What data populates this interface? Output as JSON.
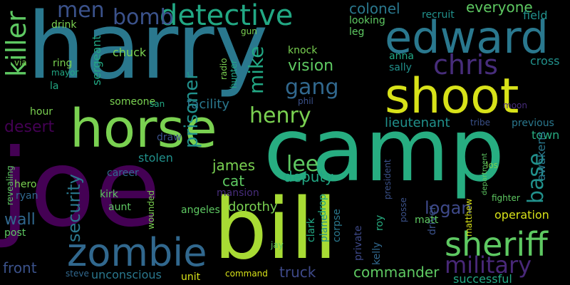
{
  "words": [
    {
      "text": "harry",
      "color": "#2a788e"
    },
    {
      "text": "camp",
      "color": "#27ad81"
    },
    {
      "text": "joe",
      "color": "#440154"
    },
    {
      "text": "bill",
      "color": "#a8db34"
    },
    {
      "text": "horse",
      "color": "#7ad151"
    },
    {
      "text": "shoot",
      "color": "#d8e219"
    },
    {
      "text": "edward",
      "color": "#2a788e"
    },
    {
      "text": "zombie",
      "color": "#31688e"
    },
    {
      "text": "sheriff",
      "color": "#5ec962"
    },
    {
      "text": "detective",
      "color": "#22a884"
    },
    {
      "text": "chris",
      "color": "#472d7b"
    },
    {
      "text": "killer",
      "color": "#5ec962"
    },
    {
      "text": "military",
      "color": "#482878"
    },
    {
      "text": "men",
      "color": "#3b528b"
    },
    {
      "text": "bomb",
      "color": "#3b528b"
    },
    {
      "text": "gang",
      "color": "#31688e"
    },
    {
      "text": "henry",
      "color": "#7ad151"
    },
    {
      "text": "lee",
      "color": "#5ec962"
    },
    {
      "text": "mike",
      "color": "#22a884"
    },
    {
      "text": "prisoner",
      "color": "#21918c"
    },
    {
      "text": "security",
      "color": "#2a788e"
    },
    {
      "text": "base",
      "color": "#21918c"
    },
    {
      "text": "logan",
      "color": "#3e4989"
    },
    {
      "text": "vision",
      "color": "#5ec962"
    },
    {
      "text": "desert",
      "color": "#440154"
    },
    {
      "text": "everyone",
      "color": "#5ec962"
    },
    {
      "text": "colonel",
      "color": "#2a788e"
    },
    {
      "text": "lieutenant",
      "color": "#21918c"
    },
    {
      "text": "facility",
      "color": "#2a788e"
    },
    {
      "text": "wall",
      "color": "#31688e"
    },
    {
      "text": "james",
      "color": "#7ad151"
    },
    {
      "text": "front",
      "color": "#3b528b"
    },
    {
      "text": "truck",
      "color": "#3e4989"
    },
    {
      "text": "commander",
      "color": "#5ec962"
    },
    {
      "text": "operation",
      "color": "#d8e219"
    },
    {
      "text": "deputy",
      "color": "#22a884"
    },
    {
      "text": "cat",
      "color": "#5ec962"
    },
    {
      "text": "dorothy",
      "color": "#7ad151"
    },
    {
      "text": "successful",
      "color": "#22a884"
    },
    {
      "text": "stolen",
      "color": "#21918c"
    },
    {
      "text": "unconscious",
      "color": "#2a788e"
    },
    {
      "text": "town",
      "color": "#27ad81"
    },
    {
      "text": "previous",
      "color": "#2a788e"
    },
    {
      "text": "recruit",
      "color": "#21918c"
    },
    {
      "text": "field",
      "color": "#21918c"
    },
    {
      "text": "cross",
      "color": "#21918c"
    },
    {
      "text": "awakens",
      "color": "#2a788e"
    },
    {
      "text": "chuck",
      "color": "#7ad151"
    },
    {
      "text": "sergeant",
      "color": "#22a884"
    },
    {
      "text": "mansion",
      "color": "#472d7b"
    },
    {
      "text": "angeles",
      "color": "#5ec962"
    },
    {
      "text": "kirk",
      "color": "#5ec962"
    },
    {
      "text": "aunt",
      "color": "#5ec962"
    },
    {
      "text": "wounded",
      "color": "#7ad151"
    },
    {
      "text": "driver",
      "color": "#3b528b"
    },
    {
      "text": "private",
      "color": "#3e4989"
    },
    {
      "text": "clark",
      "color": "#22a884"
    },
    {
      "text": "plane",
      "color": "#21918c"
    },
    {
      "text": "corpse",
      "color": "#2a788e"
    },
    {
      "text": "kelly",
      "color": "#31688e"
    },
    {
      "text": "roy",
      "color": "#27ad81"
    },
    {
      "text": "drop",
      "color": "#22a884"
    },
    {
      "text": "posse",
      "color": "#3b528b"
    },
    {
      "text": "matt",
      "color": "#5ec962"
    },
    {
      "text": "anna",
      "color": "#22a884"
    },
    {
      "text": "sally",
      "color": "#21918c"
    },
    {
      "text": "leg",
      "color": "#5ec962"
    },
    {
      "text": "looking",
      "color": "#5ec962"
    },
    {
      "text": "knock",
      "color": "#7ad151"
    },
    {
      "text": "radio",
      "color": "#7ad151"
    },
    {
      "text": "hunter",
      "color": "#22a884"
    },
    {
      "text": "ring",
      "color": "#7ad151"
    },
    {
      "text": "drink",
      "color": "#7ad151"
    },
    {
      "text": "hour",
      "color": "#7ad151"
    },
    {
      "text": "someone",
      "color": "#7ad151"
    },
    {
      "text": "career",
      "color": "#31688e"
    },
    {
      "text": "draw",
      "color": "#3b528b"
    },
    {
      "text": "unit",
      "color": "#d8e219"
    },
    {
      "text": "post",
      "color": "#5ec962"
    },
    {
      "text": "hero",
      "color": "#7ad151"
    },
    {
      "text": "ryan",
      "color": "#31688e"
    },
    {
      "text": "revealing",
      "color": "#5ec962"
    },
    {
      "text": "steve",
      "color": "#31688e"
    },
    {
      "text": "command",
      "color": "#d8e219"
    },
    {
      "text": "jay",
      "color": "#5ec962"
    },
    {
      "text": "phil",
      "color": "#3b528b"
    },
    {
      "text": "san",
      "color": "#22a884"
    },
    {
      "text": "tribe",
      "color": "#3b528b"
    },
    {
      "text": "los",
      "color": "#7ad151"
    },
    {
      "text": "president",
      "color": "#3b528b"
    },
    {
      "text": "matthew",
      "color": "#d8e219"
    },
    {
      "text": "department",
      "color": "#5ec962"
    },
    {
      "text": "fighter",
      "color": "#5ec962"
    },
    {
      "text": "moon",
      "color": "#472d7b"
    },
    {
      "text": "la",
      "color": "#22a884"
    },
    {
      "text": "via",
      "color": "#7ad151"
    },
    {
      "text": "mayor",
      "color": "#22a884"
    },
    {
      "text": "gun",
      "color": "#7ad151"
    }
  ]
}
